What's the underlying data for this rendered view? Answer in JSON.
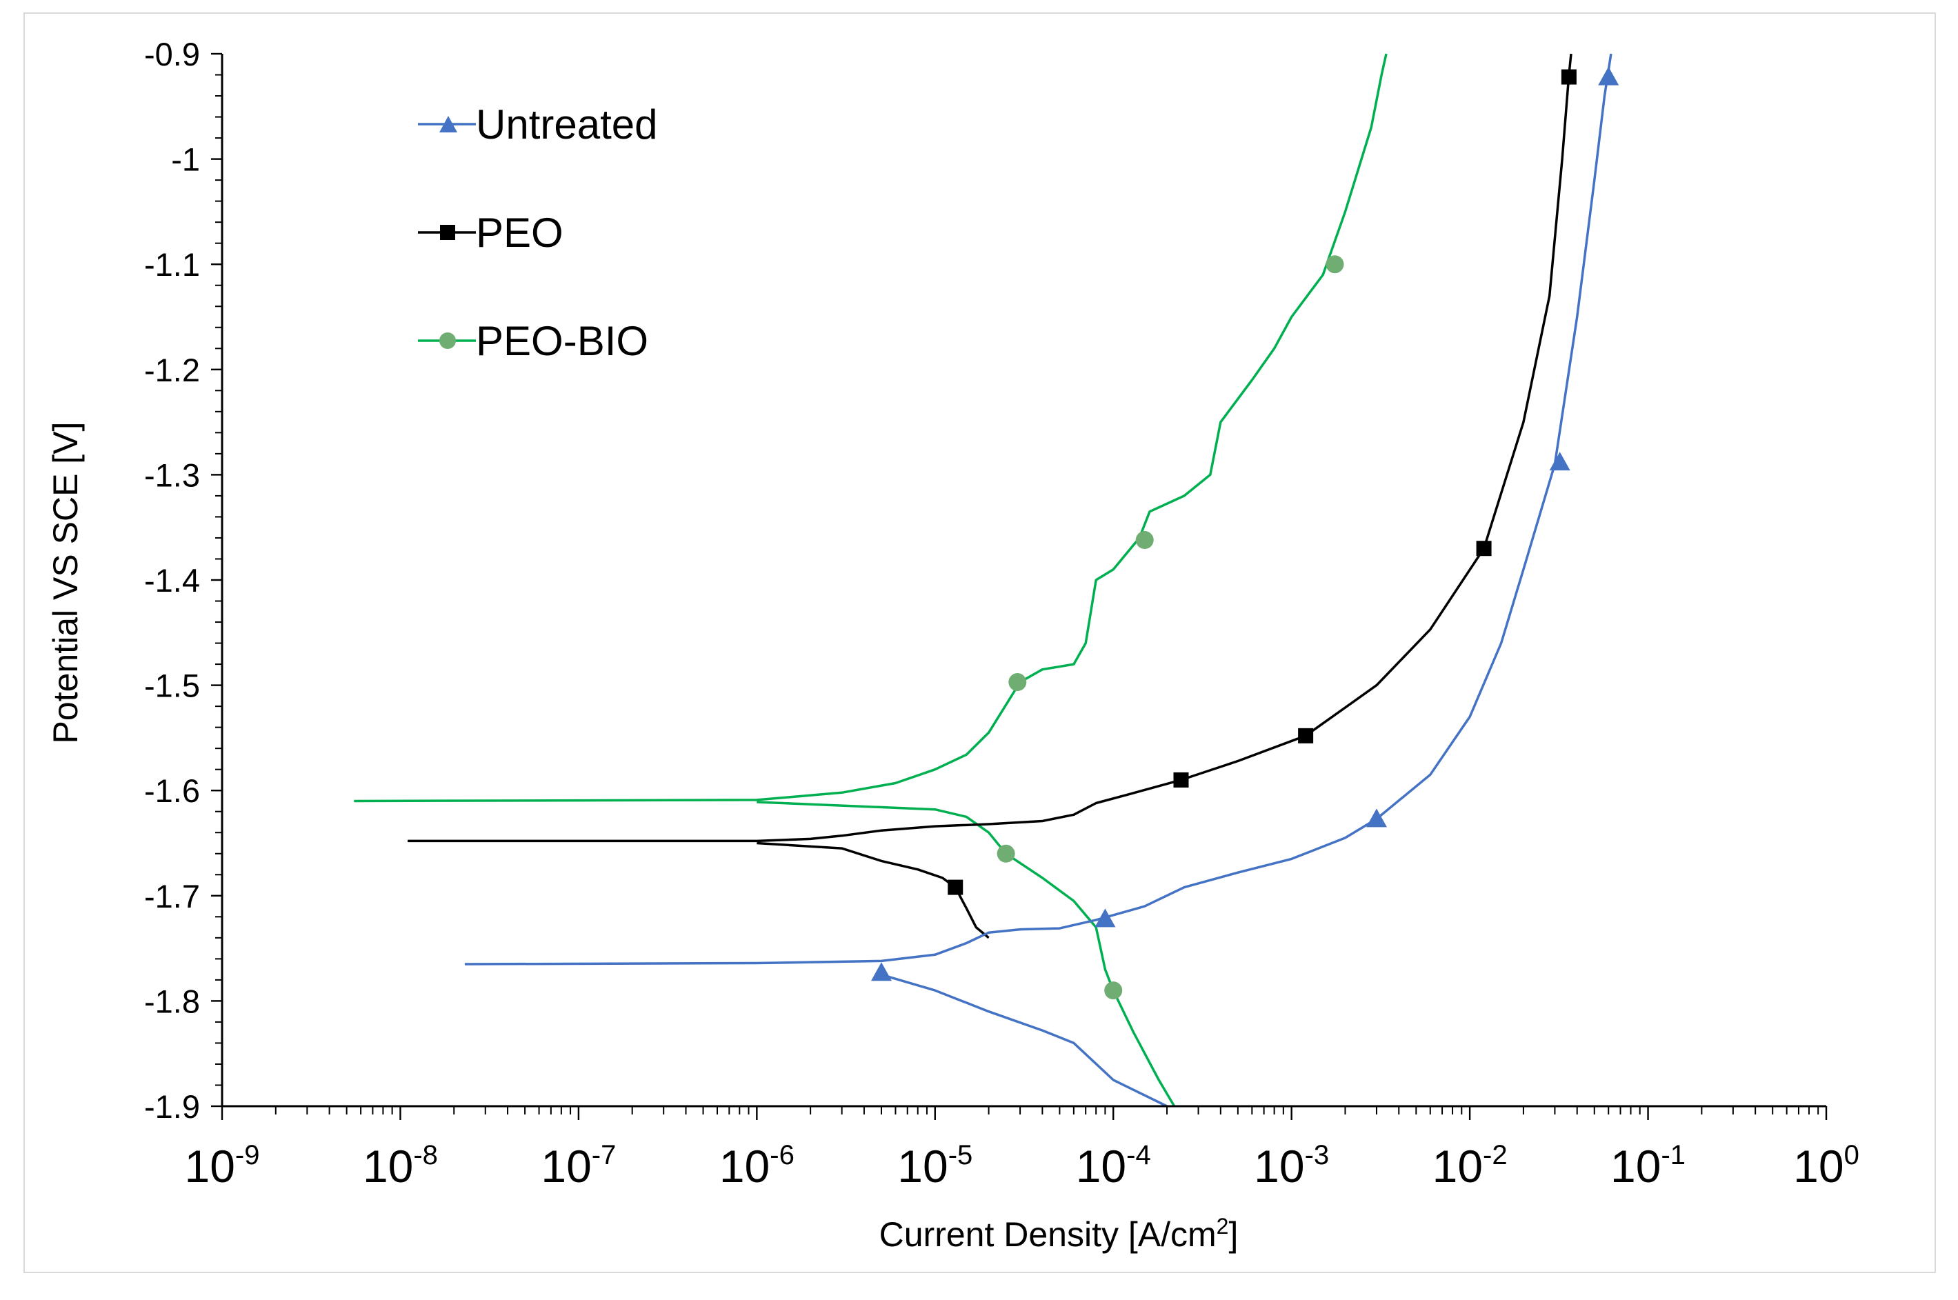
{
  "chart_data": {
    "type": "line",
    "title": "",
    "xlabel": "Current Density [A/cm",
    "xlabel_sup": "2",
    "xlabel_close": "]",
    "ylabel": "Potential VS SCE [V]",
    "xscale": "log",
    "xlim": [
      1e-09,
      1
    ],
    "ylim": [
      -1.9,
      -0.9
    ],
    "x_ticks": [
      {
        "base": "10",
        "exp": "-9",
        "value": 1e-09
      },
      {
        "base": "10",
        "exp": "-8",
        "value": 1e-08
      },
      {
        "base": "10",
        "exp": "-7",
        "value": 1e-07
      },
      {
        "base": "10",
        "exp": "-6",
        "value": 1e-06
      },
      {
        "base": "10",
        "exp": "-5",
        "value": 1e-05
      },
      {
        "base": "10",
        "exp": "-4",
        "value": 0.0001
      },
      {
        "base": "10",
        "exp": "-3",
        "value": 0.001
      },
      {
        "base": "10",
        "exp": "-2",
        "value": 0.01
      },
      {
        "base": "10",
        "exp": "-1",
        "value": 0.1
      },
      {
        "base": "10",
        "exp": "0",
        "value": 1
      }
    ],
    "y_ticks": [
      {
        "label": "-0.9",
        "value": -0.9
      },
      {
        "label": "-1",
        "value": -1.0
      },
      {
        "label": "-1.1",
        "value": -1.1
      },
      {
        "label": "-1.2",
        "value": -1.2
      },
      {
        "label": "-1.3",
        "value": -1.3
      },
      {
        "label": "-1.4",
        "value": -1.4
      },
      {
        "label": "-1.5",
        "value": -1.5
      },
      {
        "label": "-1.6",
        "value": -1.6
      },
      {
        "label": "-1.7",
        "value": -1.7
      },
      {
        "label": "-1.8",
        "value": -1.8
      },
      {
        "label": "-1.9",
        "value": -1.9
      }
    ],
    "legend_position": "top-left",
    "series": [
      {
        "name": "Untreated",
        "color": "#4472c4",
        "marker": "triangle",
        "curve": [
          [
            2.3e-08,
            -1.765
          ],
          [
            1e-06,
            -1.764
          ],
          [
            5e-06,
            -1.762
          ],
          [
            1e-05,
            -1.756
          ],
          [
            1.5e-05,
            -1.745
          ],
          [
            2e-05,
            -1.735
          ],
          [
            3e-05,
            -1.732
          ],
          [
            5e-05,
            -1.731
          ],
          [
            8e-05,
            -1.723
          ],
          [
            0.00015,
            -1.71
          ],
          [
            0.00025,
            -1.692
          ],
          [
            0.0005,
            -1.678
          ],
          [
            0.001,
            -1.665
          ],
          [
            0.002,
            -1.645
          ],
          [
            0.003,
            -1.627
          ],
          [
            0.006,
            -1.585
          ],
          [
            0.01,
            -1.53
          ],
          [
            0.015,
            -1.46
          ],
          [
            0.02,
            -1.39
          ],
          [
            0.03,
            -1.29
          ],
          [
            0.04,
            -1.15
          ],
          [
            0.05,
            -1.02
          ],
          [
            0.057,
            -0.94
          ],
          [
            0.062,
            -0.9
          ]
        ],
        "curve2": [
          [
            5e-06,
            -1.775
          ],
          [
            1e-05,
            -1.79
          ],
          [
            2e-05,
            -1.81
          ],
          [
            4e-05,
            -1.828
          ],
          [
            6e-05,
            -1.84
          ],
          [
            0.0001,
            -1.875
          ],
          [
            0.0002,
            -1.9
          ]
        ],
        "markers": [
          [
            5e-06,
            -1.773
          ],
          [
            9e-05,
            -1.722
          ],
          [
            0.003,
            -1.627
          ],
          [
            0.032,
            -1.288
          ],
          [
            0.06,
            -0.922
          ]
        ]
      },
      {
        "name": "PEO",
        "color": "#000000",
        "marker": "square",
        "curve": [
          [
            1.1e-08,
            -1.648
          ],
          [
            1e-06,
            -1.648
          ],
          [
            2e-06,
            -1.646
          ],
          [
            3e-06,
            -1.643
          ],
          [
            5e-06,
            -1.638
          ],
          [
            1e-05,
            -1.634
          ],
          [
            2e-05,
            -1.632
          ],
          [
            4e-05,
            -1.629
          ],
          [
            6e-05,
            -1.623
          ],
          [
            8e-05,
            -1.612
          ],
          [
            0.00012,
            -1.604
          ],
          [
            0.00024,
            -1.59
          ],
          [
            0.0005,
            -1.572
          ],
          [
            0.0012,
            -1.548
          ],
          [
            0.003,
            -1.5
          ],
          [
            0.006,
            -1.447
          ],
          [
            0.012,
            -1.37
          ],
          [
            0.02,
            -1.25
          ],
          [
            0.028,
            -1.13
          ],
          [
            0.033,
            -1.0
          ],
          [
            0.036,
            -0.92
          ],
          [
            0.037,
            -0.9
          ]
        ],
        "curve2": [
          [
            1e-06,
            -1.65
          ],
          [
            3e-06,
            -1.655
          ],
          [
            5e-06,
            -1.667
          ],
          [
            8e-06,
            -1.675
          ],
          [
            1.1e-05,
            -1.683
          ],
          [
            1.3e-05,
            -1.692
          ],
          [
            1.5e-05,
            -1.712
          ],
          [
            1.7e-05,
            -1.73
          ],
          [
            2e-05,
            -1.74
          ]
        ],
        "markers": [
          [
            1.3e-05,
            -1.692
          ],
          [
            0.00024,
            -1.59
          ],
          [
            0.0012,
            -1.548
          ],
          [
            0.012,
            -1.37
          ],
          [
            0.036,
            -0.922
          ]
        ]
      },
      {
        "name": "PEO-BIO",
        "color": "#00b050",
        "marker_color": "#70ad73",
        "marker": "circle",
        "curve": [
          [
            5.5e-09,
            -1.61
          ],
          [
            1e-06,
            -1.609
          ],
          [
            3e-06,
            -1.602
          ],
          [
            6e-06,
            -1.593
          ],
          [
            1e-05,
            -1.58
          ],
          [
            1.5e-05,
            -1.566
          ],
          [
            2e-05,
            -1.545
          ],
          [
            3e-05,
            -1.497
          ],
          [
            4e-05,
            -1.485
          ],
          [
            6e-05,
            -1.48
          ],
          [
            7e-05,
            -1.46
          ],
          [
            8e-05,
            -1.4
          ],
          [
            0.0001,
            -1.39
          ],
          [
            0.00014,
            -1.36
          ],
          [
            0.00016,
            -1.335
          ],
          [
            0.00025,
            -1.32
          ],
          [
            0.00035,
            -1.3
          ],
          [
            0.0004,
            -1.25
          ],
          [
            0.0006,
            -1.21
          ],
          [
            0.0008,
            -1.18
          ],
          [
            0.001,
            -1.15
          ],
          [
            0.0015,
            -1.11
          ],
          [
            0.002,
            -1.05
          ],
          [
            0.0028,
            -0.97
          ],
          [
            0.0032,
            -0.92
          ],
          [
            0.0034,
            -0.9
          ]
        ],
        "curve2": [
          [
            1e-06,
            -1.611
          ],
          [
            1e-05,
            -1.618
          ],
          [
            1.5e-05,
            -1.625
          ],
          [
            2e-05,
            -1.64
          ],
          [
            2.5e-05,
            -1.66
          ],
          [
            4e-05,
            -1.683
          ],
          [
            6e-05,
            -1.705
          ],
          [
            8e-05,
            -1.73
          ],
          [
            9e-05,
            -1.77
          ],
          [
            0.0001,
            -1.79
          ],
          [
            0.00013,
            -1.83
          ],
          [
            0.00018,
            -1.875
          ],
          [
            0.00022,
            -1.9
          ]
        ],
        "markers": [
          [
            2.9e-05,
            -1.497
          ],
          [
            0.00015,
            -1.362
          ],
          [
            0.00175,
            -1.1
          ],
          [
            2.5e-05,
            -1.66
          ],
          [
            0.0001,
            -1.79
          ]
        ]
      }
    ]
  }
}
